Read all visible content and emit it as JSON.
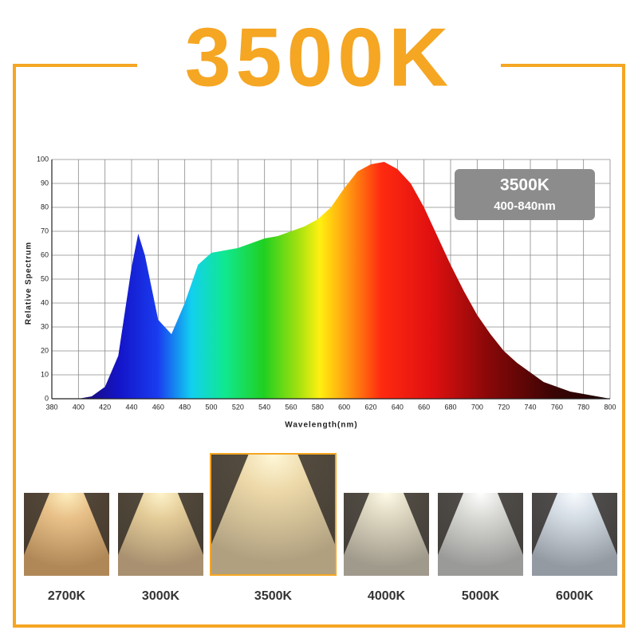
{
  "header": {
    "title": "3500K"
  },
  "chart_data": {
    "type": "area",
    "y_label": "Relative Spectrum",
    "x_label": "Wavelength(nm)",
    "annotations": [
      "3500K",
      "400-840nm"
    ],
    "x": [
      380,
      390,
      400,
      410,
      420,
      430,
      440,
      445,
      450,
      460,
      470,
      480,
      490,
      500,
      510,
      520,
      530,
      540,
      550,
      560,
      570,
      580,
      590,
      600,
      610,
      620,
      630,
      640,
      650,
      660,
      670,
      680,
      690,
      700,
      710,
      720,
      730,
      740,
      750,
      760,
      770,
      780,
      790,
      800
    ],
    "values": [
      0,
      0,
      0,
      1,
      5,
      18,
      55,
      69,
      60,
      33,
      27,
      40,
      56,
      61,
      62,
      63,
      65,
      67,
      68,
      70,
      72,
      75,
      80,
      88,
      95,
      98,
      99,
      96,
      90,
      80,
      68,
      56,
      45,
      35,
      27,
      20,
      15,
      11,
      7,
      5,
      3,
      2,
      1,
      0
    ],
    "xlim": [
      380,
      800
    ],
    "ylim": [
      0,
      100
    ],
    "xticks": [
      380,
      400,
      420,
      440,
      460,
      480,
      500,
      520,
      540,
      560,
      580,
      600,
      620,
      640,
      660,
      680,
      700,
      720,
      740,
      760,
      780,
      800
    ],
    "yticks": [
      0,
      10,
      20,
      30,
      40,
      50,
      60,
      70,
      80,
      90,
      100
    ],
    "grid": true
  },
  "swatches": [
    "2700K",
    "3000K",
    "3500K",
    "4000K",
    "5000K",
    "6000K"
  ]
}
